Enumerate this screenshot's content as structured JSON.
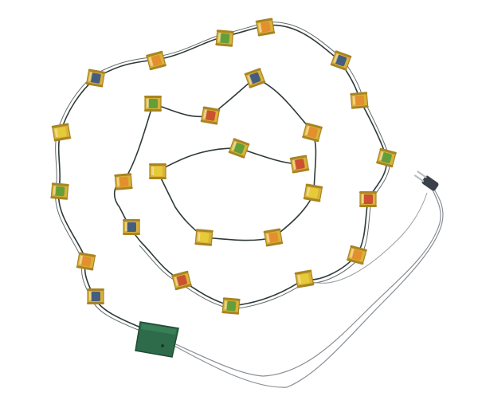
{
  "image": {
    "background": "#ffffff",
    "wire_color": "#2f3a3a",
    "lead_color": "#8a8f95",
    "controller_color": "#2d6b4a",
    "plug_color": "#3b4148",
    "bulb_colors": {
      "gold": "#d9b23a",
      "gold_dark": "#a88422",
      "green": "#4f9a3a",
      "red": "#c8402e",
      "blue": "#2c4e8c",
      "orange": "#e4882c",
      "yellow": "#e8cf3a"
    }
  }
}
